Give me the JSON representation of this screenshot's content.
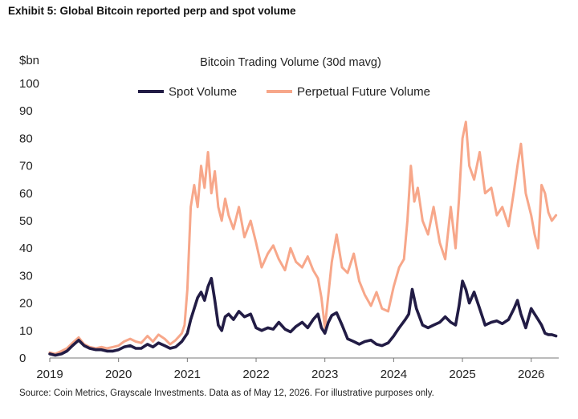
{
  "exhibit_title": "Exhibit 5: Global Bitcoin reported perp and spot volume",
  "source_note": "Source: Coin Metrics, Grayscale Investments. Data as of May 12, 2026. For illustrative purposes only.",
  "chart_data": {
    "type": "line",
    "title": "Bitcoin Trading Volume (30d mavg)",
    "ylabel": "$bn",
    "xlabel": "",
    "xlim": [
      2019.0,
      2026.4
    ],
    "ylim": [
      0,
      100
    ],
    "y_ticks": [
      "0",
      "10",
      "20",
      "30",
      "40",
      "50",
      "60",
      "70",
      "80",
      "90",
      "100"
    ],
    "x_ticks": [
      "2019",
      "2020",
      "2021",
      "2022",
      "2023",
      "2024",
      "2025",
      "2026"
    ],
    "grid": false,
    "legend_position": "top-center",
    "series": [
      {
        "name": "Spot Volume",
        "color": "#221c45",
        "x": [
          2019.0,
          2019.08,
          2019.17,
          2019.25,
          2019.33,
          2019.42,
          2019.5,
          2019.58,
          2019.67,
          2019.75,
          2019.83,
          2019.92,
          2020.0,
          2020.08,
          2020.17,
          2020.25,
          2020.33,
          2020.42,
          2020.5,
          2020.58,
          2020.67,
          2020.75,
          2020.83,
          2020.92,
          2021.0,
          2021.05,
          2021.1,
          2021.15,
          2021.2,
          2021.25,
          2021.3,
          2021.35,
          2021.4,
          2021.45,
          2021.5,
          2021.55,
          2021.6,
          2021.67,
          2021.75,
          2021.83,
          2021.92,
          2022.0,
          2022.08,
          2022.17,
          2022.25,
          2022.33,
          2022.42,
          2022.5,
          2022.58,
          2022.67,
          2022.75,
          2022.83,
          2022.9,
          2022.95,
          2023.0,
          2023.05,
          2023.1,
          2023.17,
          2023.25,
          2023.33,
          2023.42,
          2023.5,
          2023.58,
          2023.67,
          2023.75,
          2023.83,
          2023.92,
          2024.0,
          2024.08,
          2024.17,
          2024.22,
          2024.27,
          2024.33,
          2024.42,
          2024.5,
          2024.58,
          2024.67,
          2024.75,
          2024.83,
          2024.9,
          2024.95,
          2025.0,
          2025.05,
          2025.1,
          2025.17,
          2025.25,
          2025.33,
          2025.42,
          2025.5,
          2025.58,
          2025.67,
          2025.75,
          2025.8,
          2025.85,
          2025.92,
          2026.0,
          2026.05,
          2026.1,
          2026.15,
          2026.2,
          2026.25,
          2026.3,
          2026.36
        ],
        "values": [
          1.5,
          1.0,
          1.5,
          2.5,
          4.5,
          6.5,
          4.5,
          3.5,
          3.0,
          3.0,
          2.5,
          2.5,
          3.0,
          4.0,
          4.5,
          3.5,
          3.5,
          5.0,
          4.0,
          5.5,
          4.5,
          3.5,
          4.0,
          6.0,
          9.0,
          14.0,
          18.0,
          22.0,
          24.0,
          21.0,
          26.0,
          29.0,
          21.0,
          12.0,
          10.0,
          15.0,
          16.0,
          14.0,
          17.0,
          15.0,
          16.0,
          11.0,
          10.0,
          11.0,
          10.5,
          13.0,
          10.5,
          9.5,
          11.5,
          13.0,
          11.0,
          14.0,
          16.0,
          11.0,
          9.0,
          13.0,
          15.5,
          16.5,
          12.0,
          7.0,
          6.0,
          5.0,
          6.0,
          6.5,
          5.0,
          4.5,
          5.5,
          8.0,
          11.0,
          14.0,
          16.0,
          25.0,
          18.0,
          12.0,
          11.0,
          12.0,
          13.0,
          15.0,
          13.0,
          12.0,
          19.0,
          28.0,
          25.0,
          20.0,
          24.0,
          18.0,
          12.0,
          13.0,
          13.5,
          12.5,
          14.0,
          18.0,
          21.0,
          16.0,
          11.0,
          18.0,
          16.0,
          14.0,
          12.0,
          9.0,
          8.5,
          8.5,
          8.0
        ]
      },
      {
        "name": "Perpetual Future Volume",
        "color": "#f7a78a",
        "x": [
          2019.0,
          2019.08,
          2019.17,
          2019.25,
          2019.33,
          2019.42,
          2019.5,
          2019.58,
          2019.67,
          2019.75,
          2019.83,
          2019.92,
          2020.0,
          2020.08,
          2020.17,
          2020.25,
          2020.33,
          2020.42,
          2020.5,
          2020.58,
          2020.67,
          2020.75,
          2020.83,
          2020.92,
          2020.96,
          2021.0,
          2021.05,
          2021.1,
          2021.15,
          2021.2,
          2021.25,
          2021.3,
          2021.35,
          2021.4,
          2021.45,
          2021.5,
          2021.55,
          2021.6,
          2021.67,
          2021.75,
          2021.83,
          2021.92,
          2022.0,
          2022.08,
          2022.17,
          2022.25,
          2022.33,
          2022.42,
          2022.5,
          2022.58,
          2022.67,
          2022.75,
          2022.83,
          2022.9,
          2022.95,
          2023.0,
          2023.05,
          2023.1,
          2023.17,
          2023.25,
          2023.33,
          2023.42,
          2023.5,
          2023.58,
          2023.67,
          2023.75,
          2023.83,
          2023.92,
          2024.0,
          2024.08,
          2024.15,
          2024.2,
          2024.25,
          2024.3,
          2024.35,
          2024.42,
          2024.5,
          2024.58,
          2024.67,
          2024.75,
          2024.83,
          2024.9,
          2024.95,
          2025.0,
          2025.05,
          2025.1,
          2025.17,
          2025.25,
          2025.33,
          2025.42,
          2025.5,
          2025.58,
          2025.67,
          2025.75,
          2025.8,
          2025.85,
          2025.92,
          2026.0,
          2026.05,
          2026.1,
          2026.15,
          2026.2,
          2026.25,
          2026.3,
          2026.36
        ],
        "values": [
          2.0,
          1.5,
          2.5,
          3.5,
          5.5,
          7.5,
          5.0,
          4.0,
          3.5,
          4.0,
          3.5,
          4.0,
          4.5,
          6.0,
          7.0,
          6.0,
          5.5,
          8.0,
          6.0,
          8.5,
          7.0,
          5.0,
          6.5,
          9.0,
          12.0,
          25.0,
          55.0,
          63.0,
          55.0,
          70.0,
          62.0,
          75.0,
          60.0,
          68.0,
          55.0,
          50.0,
          58.0,
          52.0,
          47.0,
          55.0,
          44.0,
          50.0,
          42.0,
          33.0,
          38.0,
          41.0,
          36.0,
          32.0,
          40.0,
          35.0,
          33.0,
          37.0,
          32.0,
          29.0,
          22.0,
          11.0,
          23.0,
          35.0,
          45.0,
          33.0,
          31.0,
          38.0,
          28.0,
          23.0,
          19.0,
          24.0,
          18.0,
          17.0,
          26.0,
          33.0,
          36.0,
          50.0,
          70.0,
          57.0,
          62.0,
          50.0,
          45.0,
          55.0,
          42.0,
          36.0,
          55.0,
          40.0,
          58.0,
          80.0,
          86.0,
          70.0,
          65.0,
          75.0,
          60.0,
          62.0,
          52.0,
          55.0,
          48.0,
          61.0,
          70.0,
          78.0,
          60.0,
          52.0,
          45.0,
          40.0,
          63.0,
          60.0,
          53.0,
          50.0,
          52.0
        ]
      }
    ]
  }
}
